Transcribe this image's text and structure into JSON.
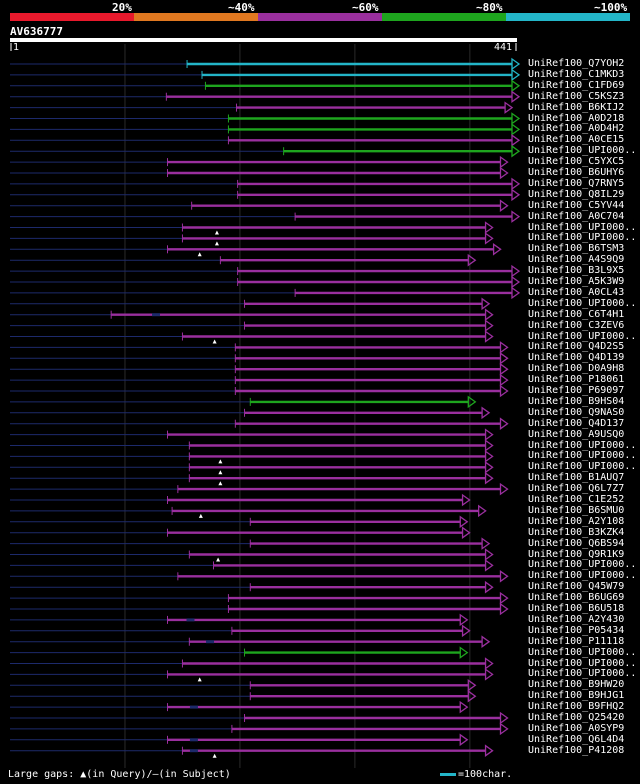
{
  "query_id": "AV636777",
  "query_length_label": "441",
  "query_start_label": "1",
  "query_length": 441,
  "pct_labels": [
    "20%",
    "~40%",
    "~60%",
    "~80%",
    "~100%"
  ],
  "colors": {
    "c20": "#e8192c",
    "c40": "#e07820",
    "c60": "#9a2f9e",
    "c80": "#1ea51e",
    "c100": "#23b5c8",
    "query": "#ffffff",
    "background": "#000000"
  },
  "legend": {
    "gaps_label": "Large gaps: ",
    "gaps_query": "(in Query)/",
    "gaps_subject": "(in Subject)",
    "scale_label": "=100char."
  },
  "hits": [
    {
      "id": "UniRef100_Q7YOH2",
      "start": 154,
      "end": 441,
      "tier": "c100",
      "gapQ": null,
      "gapS": []
    },
    {
      "id": "UniRef100_C1MKD3",
      "start": 167,
      "end": 441,
      "tier": "c100",
      "gapQ": null,
      "gapS": []
    },
    {
      "id": "UniRef100_C1FD69",
      "start": 170,
      "end": 441,
      "tier": "c80",
      "gapQ": null,
      "gapS": []
    },
    {
      "id": "UniRef100_C5KSZ3",
      "start": 136,
      "end": 441,
      "tier": "c60",
      "gapQ": null,
      "gapS": []
    },
    {
      "id": "UniRef100_B6KIJ2",
      "start": 197,
      "end": 435,
      "tier": "c60",
      "gapQ": null,
      "gapS": []
    },
    {
      "id": "UniRef100_A0D218",
      "start": 190,
      "end": 441,
      "tier": "c80",
      "gapQ": null,
      "gapS": []
    },
    {
      "id": "UniRef100_A0D4H2",
      "start": 190,
      "end": 441,
      "tier": "c80",
      "gapQ": null,
      "gapS": []
    },
    {
      "id": "UniRef100_A0CE15",
      "start": 190,
      "end": 441,
      "tier": "c60",
      "gapQ": null,
      "gapS": []
    },
    {
      "id": "UniRef100_UPI000..",
      "start": 238,
      "end": 441,
      "tier": "c80",
      "gapQ": null,
      "gapS": []
    },
    {
      "id": "UniRef100_C5YXC5",
      "start": 137,
      "end": 431,
      "tier": "c60",
      "gapQ": null,
      "gapS": []
    },
    {
      "id": "UniRef100_B6UHY6",
      "start": 137,
      "end": 431,
      "tier": "c60",
      "gapQ": null,
      "gapS": []
    },
    {
      "id": "UniRef100_Q7RNY5",
      "start": 198,
      "end": 441,
      "tier": "c60",
      "gapQ": null,
      "gapS": []
    },
    {
      "id": "UniRef100_Q8IL29",
      "start": 198,
      "end": 441,
      "tier": "c60",
      "gapQ": null,
      "gapS": []
    },
    {
      "id": "UniRef100_C5YV44",
      "start": 158,
      "end": 431,
      "tier": "c60",
      "gapQ": null,
      "gapS": []
    },
    {
      "id": "UniRef100_A0C704",
      "start": 248,
      "end": 441,
      "tier": "c60",
      "gapQ": null,
      "gapS": []
    },
    {
      "id": "UniRef100_UPI000..",
      "start": 150,
      "end": 418,
      "tier": "c60",
      "gapQ": 180,
      "gapS": []
    },
    {
      "id": "UniRef100_UPI000..",
      "start": 150,
      "end": 418,
      "tier": "c60",
      "gapQ": 180,
      "gapS": []
    },
    {
      "id": "UniRef100_B6TSM3",
      "start": 137,
      "end": 425,
      "tier": "c60",
      "gapQ": 165,
      "gapS": []
    },
    {
      "id": "UniRef100_A4S9Q9",
      "start": 183,
      "end": 403,
      "tier": "c60",
      "gapQ": null,
      "gapS": []
    },
    {
      "id": "UniRef100_B3L9X5",
      "start": 198,
      "end": 441,
      "tier": "c60",
      "gapQ": null,
      "gapS": []
    },
    {
      "id": "UniRef100_A5K3W9",
      "start": 198,
      "end": 441,
      "tier": "c60",
      "gapQ": null,
      "gapS": []
    },
    {
      "id": "UniRef100_A0CL43",
      "start": 248,
      "end": 441,
      "tier": "c60",
      "gapQ": null,
      "gapS": []
    },
    {
      "id": "UniRef100_UPI000..",
      "start": 204,
      "end": 415,
      "tier": "c60",
      "gapQ": null,
      "gapS": []
    },
    {
      "id": "UniRef100_C6T4H1",
      "start": 88,
      "end": 418,
      "tier": "c60",
      "gapQ": null,
      "gapS": [
        127
      ]
    },
    {
      "id": "UniRef100_C3ZEV6",
      "start": 204,
      "end": 418,
      "tier": "c60",
      "gapQ": null,
      "gapS": []
    },
    {
      "id": "UniRef100_UPI000..",
      "start": 150,
      "end": 418,
      "tier": "c60",
      "gapQ": 178,
      "gapS": []
    },
    {
      "id": "UniRef100_Q4D2S5",
      "start": 196,
      "end": 431,
      "tier": "c60",
      "gapQ": null,
      "gapS": []
    },
    {
      "id": "UniRef100_Q4D139",
      "start": 196,
      "end": 431,
      "tier": "c60",
      "gapQ": null,
      "gapS": []
    },
    {
      "id": "UniRef100_D0A9H8",
      "start": 196,
      "end": 431,
      "tier": "c60",
      "gapQ": null,
      "gapS": []
    },
    {
      "id": "UniRef100_P18061",
      "start": 196,
      "end": 431,
      "tier": "c60",
      "gapQ": null,
      "gapS": []
    },
    {
      "id": "UniRef100_P69097",
      "start": 196,
      "end": 431,
      "tier": "c60",
      "gapQ": null,
      "gapS": []
    },
    {
      "id": "UniRef100_B9HS04",
      "start": 209,
      "end": 403,
      "tier": "c80",
      "gapQ": null,
      "gapS": []
    },
    {
      "id": "UniRef100_Q9NAS0",
      "start": 204,
      "end": 415,
      "tier": "c60",
      "gapQ": null,
      "gapS": []
    },
    {
      "id": "UniRef100_Q4D137",
      "start": 196,
      "end": 431,
      "tier": "c60",
      "gapQ": null,
      "gapS": []
    },
    {
      "id": "UniRef100_A9USQ0",
      "start": 137,
      "end": 418,
      "tier": "c60",
      "gapQ": null,
      "gapS": []
    },
    {
      "id": "UniRef100_UPI000..",
      "start": 156,
      "end": 418,
      "tier": "c60",
      "gapQ": null,
      "gapS": []
    },
    {
      "id": "UniRef100_UPI000..",
      "start": 156,
      "end": 418,
      "tier": "c60",
      "gapQ": 183,
      "gapS": []
    },
    {
      "id": "UniRef100_UPI000..",
      "start": 156,
      "end": 418,
      "tier": "c60",
      "gapQ": 183,
      "gapS": []
    },
    {
      "id": "UniRef100_B1AUQ7",
      "start": 156,
      "end": 418,
      "tier": "c60",
      "gapQ": 183,
      "gapS": []
    },
    {
      "id": "UniRef100_Q6L7Z7",
      "start": 146,
      "end": 431,
      "tier": "c60",
      "gapQ": null,
      "gapS": []
    },
    {
      "id": "UniRef100_C1E252",
      "start": 137,
      "end": 398,
      "tier": "c60",
      "gapQ": null,
      "gapS": []
    },
    {
      "id": "UniRef100_B6SMU0",
      "start": 141,
      "end": 412,
      "tier": "c60",
      "gapQ": 166,
      "gapS": []
    },
    {
      "id": "UniRef100_A2Y108",
      "start": 209,
      "end": 396,
      "tier": "c60",
      "gapQ": null,
      "gapS": []
    },
    {
      "id": "UniRef100_B3KZK4",
      "start": 137,
      "end": 398,
      "tier": "c60",
      "gapQ": null,
      "gapS": []
    },
    {
      "id": "UniRef100_Q6BS94",
      "start": 209,
      "end": 415,
      "tier": "c60",
      "gapQ": null,
      "gapS": []
    },
    {
      "id": "UniRef100_Q9R1K9",
      "start": 156,
      "end": 418,
      "tier": "c60",
      "gapQ": 181,
      "gapS": []
    },
    {
      "id": "UniRef100_UPI000..",
      "start": 177,
      "end": 418,
      "tier": "c60",
      "gapQ": null,
      "gapS": []
    },
    {
      "id": "UniRef100_UPI000..",
      "start": 146,
      "end": 431,
      "tier": "c60",
      "gapQ": null,
      "gapS": []
    },
    {
      "id": "UniRef100_Q45W79",
      "start": 209,
      "end": 418,
      "tier": "c60",
      "gapQ": null,
      "gapS": []
    },
    {
      "id": "UniRef100_B6UG69",
      "start": 190,
      "end": 431,
      "tier": "c60",
      "gapQ": null,
      "gapS": []
    },
    {
      "id": "UniRef100_B6U518",
      "start": 190,
      "end": 431,
      "tier": "c60",
      "gapQ": null,
      "gapS": []
    },
    {
      "id": "UniRef100_A2Y430",
      "start": 137,
      "end": 396,
      "tier": "c60",
      "gapQ": null,
      "gapS": [
        157
      ]
    },
    {
      "id": "UniRef100_P05434",
      "start": 193,
      "end": 398,
      "tier": "c60",
      "gapQ": null,
      "gapS": []
    },
    {
      "id": "UniRef100_P11118",
      "start": 156,
      "end": 415,
      "tier": "c60",
      "gapQ": null,
      "gapS": [
        174
      ]
    },
    {
      "id": "UniRef100_UPI000..",
      "start": 204,
      "end": 396,
      "tier": "c80",
      "gapQ": null,
      "gapS": []
    },
    {
      "id": "UniRef100_UPI000..",
      "start": 150,
      "end": 418,
      "tier": "c60",
      "gapQ": null,
      "gapS": []
    },
    {
      "id": "UniRef100_UPI000..",
      "start": 137,
      "end": 418,
      "tier": "c60",
      "gapQ": 165,
      "gapS": []
    },
    {
      "id": "UniRef100_B9HW20",
      "start": 209,
      "end": 403,
      "tier": "c60",
      "gapQ": null,
      "gapS": []
    },
    {
      "id": "UniRef100_B9HJG1",
      "start": 209,
      "end": 403,
      "tier": "c60",
      "gapQ": null,
      "gapS": []
    },
    {
      "id": "UniRef100_B9FHQ2",
      "start": 137,
      "end": 396,
      "tier": "c60",
      "gapQ": null,
      "gapS": [
        160
      ]
    },
    {
      "id": "UniRef100_Q25420",
      "start": 204,
      "end": 431,
      "tier": "c60",
      "gapQ": null,
      "gapS": []
    },
    {
      "id": "UniRef100_A0SYP9",
      "start": 193,
      "end": 431,
      "tier": "c60",
      "gapQ": null,
      "gapS": []
    },
    {
      "id": "UniRef100_Q6L4D4",
      "start": 137,
      "end": 396,
      "tier": "c60",
      "gapQ": null,
      "gapS": [
        160
      ]
    },
    {
      "id": "UniRef100_P41208",
      "start": 150,
      "end": 418,
      "tier": "c60",
      "gapQ": 178,
      "gapS": [
        160
      ]
    }
  ]
}
